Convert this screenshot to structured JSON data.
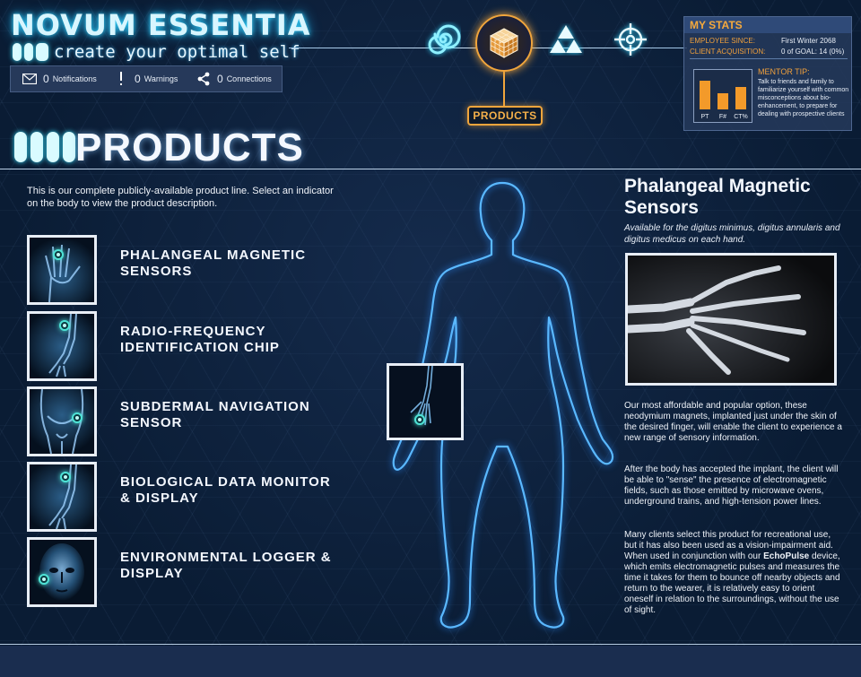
{
  "header": {
    "logo_title": "NOVUM ESSENTIA",
    "tagline": "create your optimal self"
  },
  "notifications": [
    {
      "icon": "envelope-icon",
      "count": "0",
      "label": "Notifications"
    },
    {
      "icon": "exclamation-icon",
      "count": "0",
      "label": "Warnings"
    },
    {
      "icon": "share-icon",
      "count": "0",
      "label": "Connections"
    }
  ],
  "nav": {
    "items": [
      {
        "icon": "spiral-icon",
        "active": false
      },
      {
        "icon": "cube-icon",
        "active": true,
        "label": "PRODUCTS"
      },
      {
        "icon": "triforce-icon",
        "active": false
      },
      {
        "icon": "crosshair-icon",
        "active": false
      }
    ],
    "active_color": "#f0a53c"
  },
  "stats": {
    "title": "MY STATS",
    "rows": [
      {
        "label": "EMPLOYEE SINCE:",
        "value": "First Winter 2068"
      },
      {
        "label": "CLIENT ACQUISITION:",
        "value": "0 of GOAL: 14 (0%)"
      }
    ],
    "chart": {
      "labels": [
        "PT",
        "F#",
        "CT%"
      ],
      "levels": [
        0.8,
        0.45,
        0.62
      ],
      "color": "#f39a2a"
    },
    "mentor_label": "MENTOR TIP:",
    "mentor_text": "Talk to friends and family to familiarize yourself with common misconceptions about bio-enhancement, to prepare for dealing with prospective clients"
  },
  "page": {
    "title": "PRODUCTS",
    "intro": "This is our complete publicly-available product line.  Select an indicator on the body to view the product description."
  },
  "products": [
    {
      "name": "PHALANGEAL MAGNETIC SENSORS",
      "thumb": "hand-thumbnail"
    },
    {
      "name": "RADIO-FREQUENCY IDENTIFICATION CHIP",
      "thumb": "arm-thumbnail"
    },
    {
      "name": "SUBDERMAL NAVIGATION SENSOR",
      "thumb": "hip-thumbnail"
    },
    {
      "name": "BIOLOGICAL DATA MONITOR & DISPLAY",
      "thumb": "forearm-thumbnail"
    },
    {
      "name": "ENVIRONMENTAL LOGGER & DISPLAY",
      "thumb": "head-thumbnail"
    }
  ],
  "detail": {
    "title": "Phalangeal Magnetic Sensors",
    "subtitle": "Available for the digitus minimus, digitus annularis and digitus medicus on each hand.",
    "para1": "Our most affordable and popular option, these neodymium magnets, implanted just under the skin of the desired finger, will enable the client to experience a new range of sensory information.",
    "para2": "After the body has accepted the implant, the client will be able to \"sense\" the presence of electromagnetic fields, such as those emitted by microwave ovens, underground trains, and high-tension power lines.",
    "para3_a": "Many clients select this product for recreational use, but it has also been used as a vision-impairment aid.  When used in conjunction with our ",
    "para3_b": "EchoPulse",
    "para3_c": " device, which emits electromagnetic pulses and measures the time it takes for them to bounce off nearby objects and return to the wearer, it is relatively easy to orient oneself in relation to the surroundings, without the use of sight."
  },
  "colors": {
    "accent_glow": "#36d7ff",
    "indicator": "#4ee3d6",
    "body_outline": "#5ab8ff",
    "stats_label": "#f0a03c"
  }
}
